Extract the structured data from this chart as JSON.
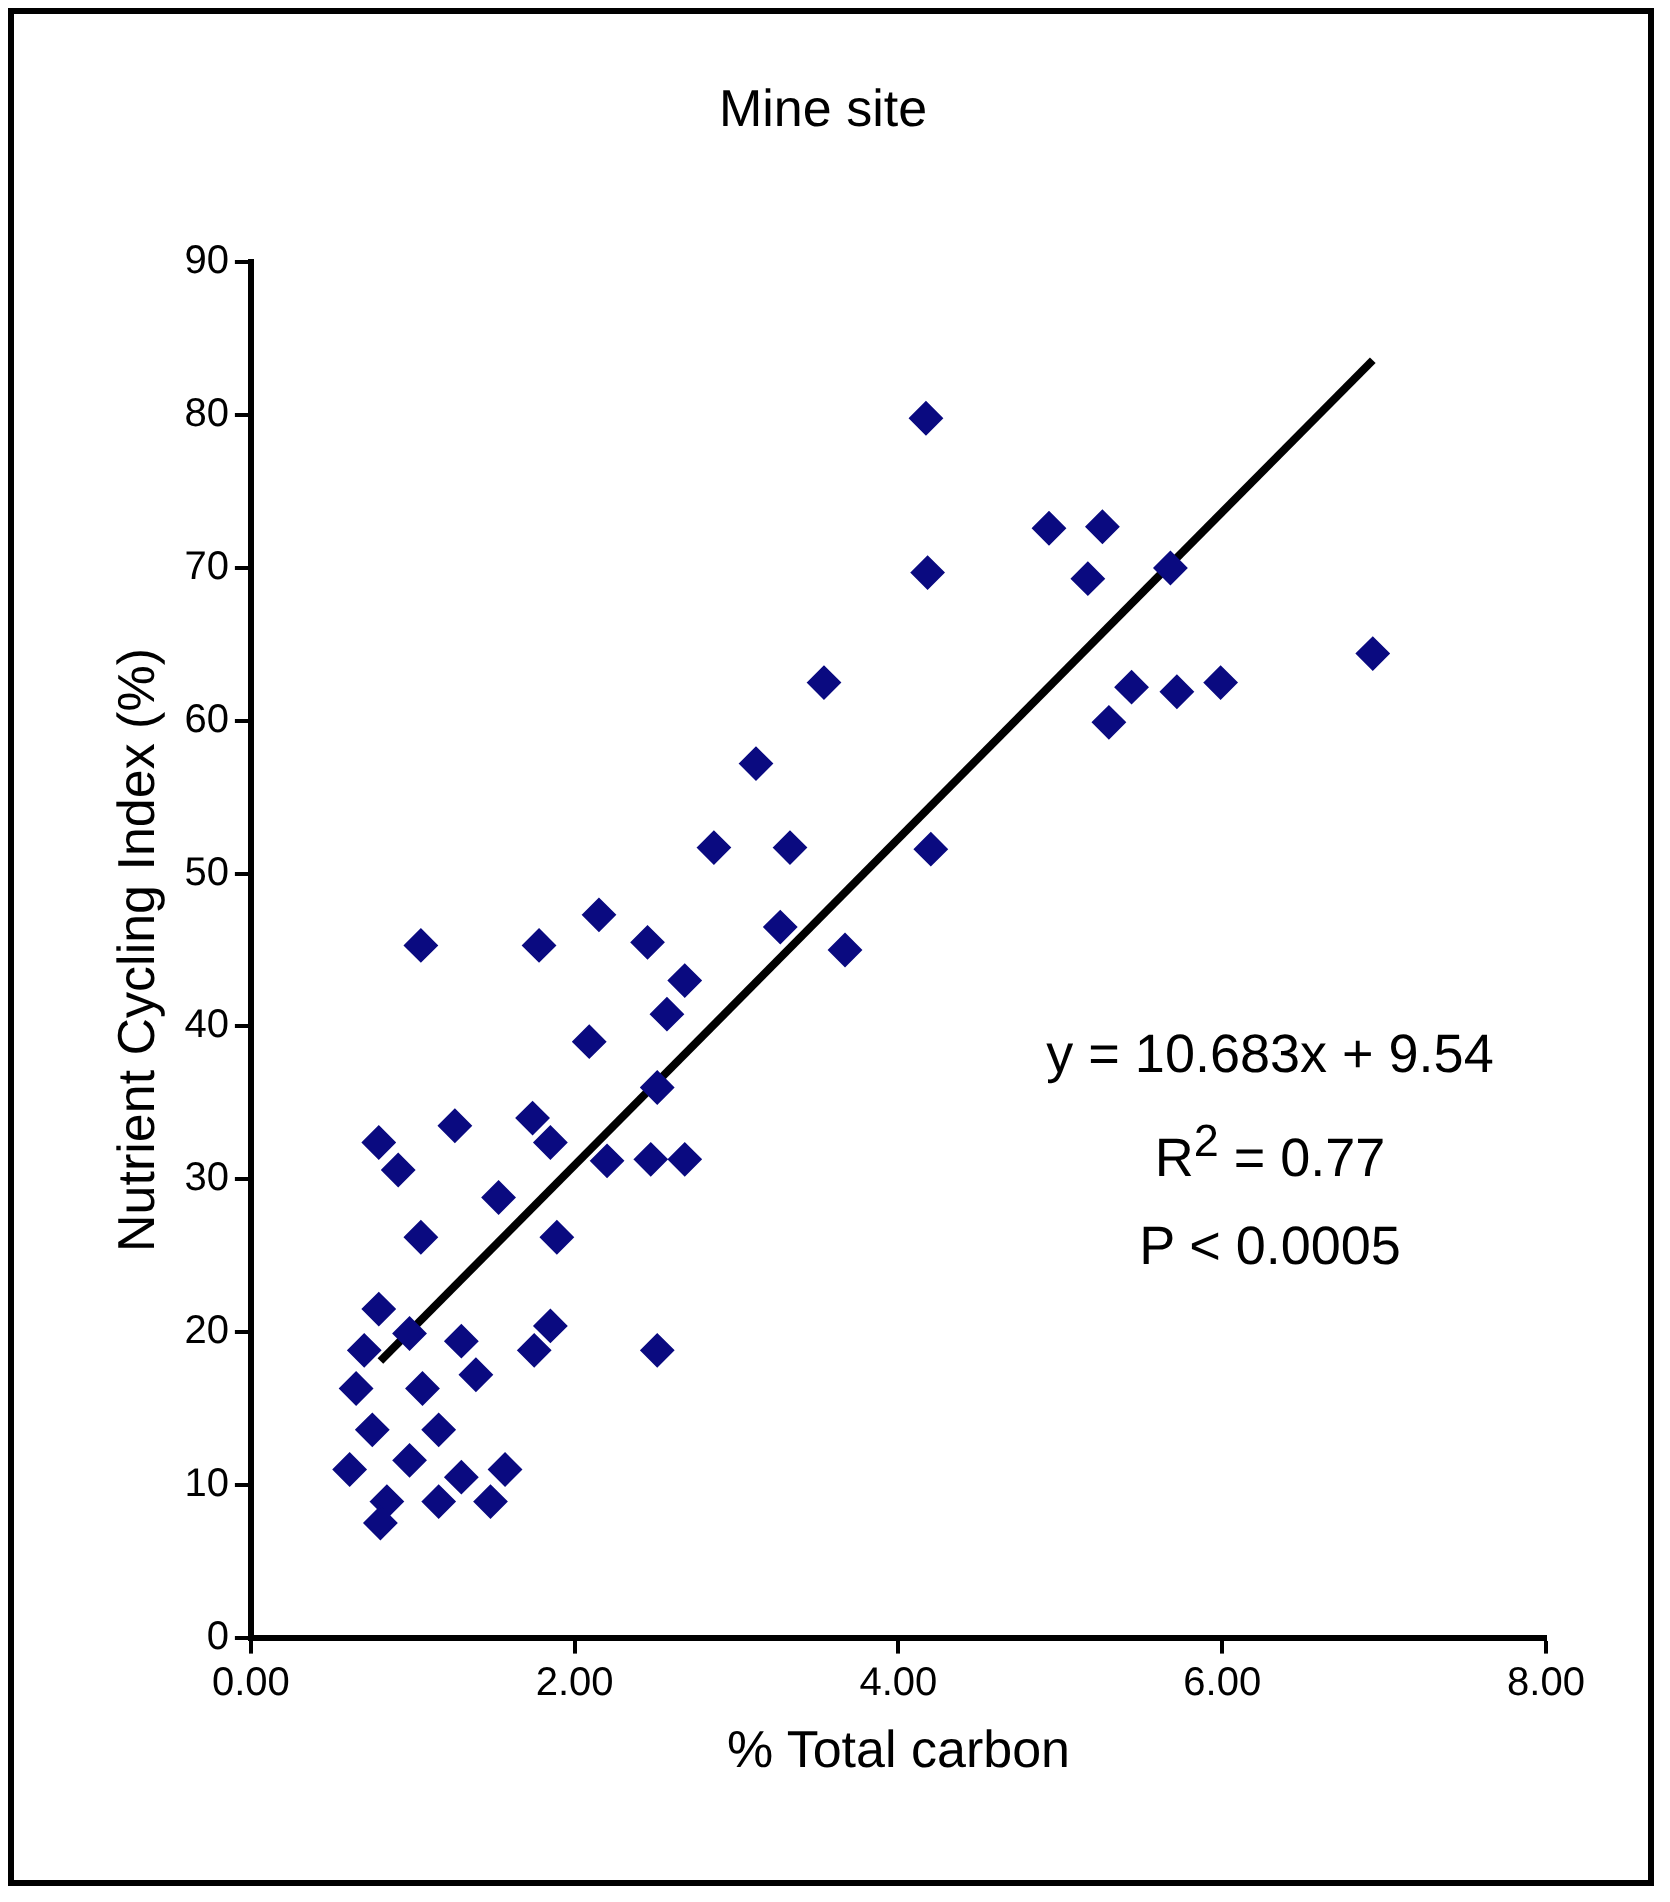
{
  "chart_data": {
    "type": "scatter",
    "title": "Mine site",
    "xlabel": "% Total carbon",
    "ylabel": "Nutrient Cycling Index (%)",
    "xlim": [
      0,
      8
    ],
    "xticks": [
      {
        "value": 0,
        "label": "0.00"
      },
      {
        "value": 2,
        "label": "2.00"
      },
      {
        "value": 4,
        "label": "4.00"
      },
      {
        "value": 6,
        "label": "6.00"
      },
      {
        "value": 8,
        "label": "8.00"
      }
    ],
    "ylim": [
      0,
      90
    ],
    "yticks": [
      0,
      10,
      20,
      30,
      40,
      50,
      60,
      70,
      80,
      90
    ],
    "grid": false,
    "legend": false,
    "annotations": [
      "y = 10.683x + 9.54",
      "R$^{2}$ = 0.77",
      "P < 0.0005"
    ],
    "series": [
      {
        "type": "scatter",
        "marker": "diamond",
        "color": "#0a0a80",
        "x": [
          4.17,
          4.18,
          4.93,
          5.26,
          5.17,
          5.68,
          5.44,
          5.72,
          5.3,
          5.99,
          6.93,
          3.54,
          3.12,
          2.86,
          3.33,
          4.2,
          3.27,
          3.67,
          1.05,
          1.78,
          2.15,
          2.45,
          2.09,
          2.68,
          2.57,
          2.51,
          0.79,
          0.91,
          1.26,
          1.74,
          1.85,
          1.53,
          2.2,
          2.47,
          2.68,
          1.89,
          1.05,
          1.85,
          2.51,
          1.75,
          0.79,
          1.3,
          0.98,
          0.7,
          0.65,
          1.06,
          1.39,
          0.75,
          1.16,
          0.98,
          0.61,
          1.57,
          0.84,
          1.16,
          1.48,
          1.3,
          0.8
        ],
        "values": [
          79.8,
          69.7,
          72.6,
          72.7,
          69.3,
          70,
          62.2,
          61.9,
          59.9,
          62.5,
          64.4,
          62.5,
          57.2,
          51.7,
          51.7,
          51.6,
          46.5,
          45,
          45.3,
          45.3,
          47.3,
          45.5,
          39,
          43,
          40.8,
          36,
          32.4,
          30.6,
          33.5,
          34,
          32.4,
          28.8,
          31.2,
          31.3,
          31.3,
          26.2,
          26.2,
          20.4,
          18.8,
          18.8,
          21.5,
          19.4,
          19.9,
          18.8,
          16.3,
          16.3,
          17.2,
          13.6,
          13.6,
          11.6,
          11,
          11,
          8.9,
          8.9,
          8.9,
          10.5,
          7.5
        ]
      },
      {
        "type": "line",
        "marker": "none",
        "color": "#000000",
        "x": [
          0.8,
          6.93
        ],
        "values": [
          18.1,
          83.6
        ]
      }
    ]
  }
}
